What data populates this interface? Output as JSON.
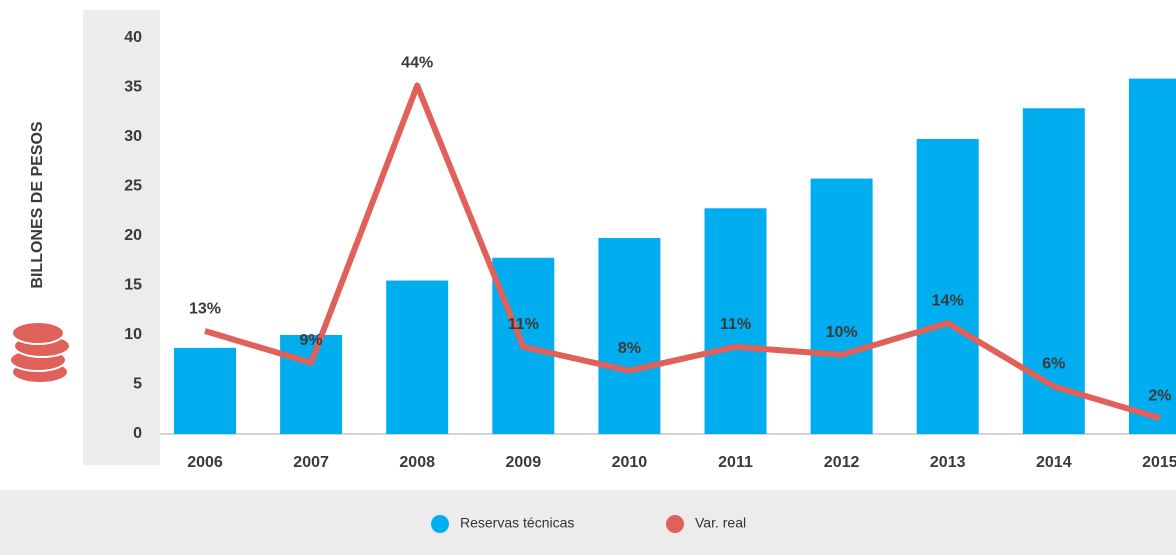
{
  "chart_data": {
    "type": "bar-line",
    "y_axis_label": "BILLONES DE PESOS",
    "categories": [
      "2006",
      "2007",
      "2008",
      "2009",
      "2010",
      "2011",
      "2012",
      "2013",
      "2014",
      "2015"
    ],
    "ylim": [
      0,
      40
    ],
    "yticks": [
      0,
      5,
      10,
      15,
      20,
      25,
      30,
      35,
      40
    ],
    "y2lim": [
      0,
      50
    ],
    "series": [
      {
        "name": "Reservas técnicas",
        "type": "bar",
        "color": "#00aeef",
        "values": [
          8.7,
          10,
          15.5,
          17.8,
          19.8,
          22.8,
          25.8,
          29.8,
          32.9,
          35.9
        ]
      },
      {
        "name": "Var. real",
        "type": "line",
        "axis": "y2",
        "color": "#e0605a",
        "values": [
          13,
          9,
          44,
          11,
          8,
          11,
          10,
          14,
          6,
          2
        ],
        "value_labels": [
          "13%",
          "9%",
          "44%",
          "11%",
          "8%",
          "11%",
          "10%",
          "14%",
          "6%",
          "2%"
        ]
      }
    ]
  }
}
